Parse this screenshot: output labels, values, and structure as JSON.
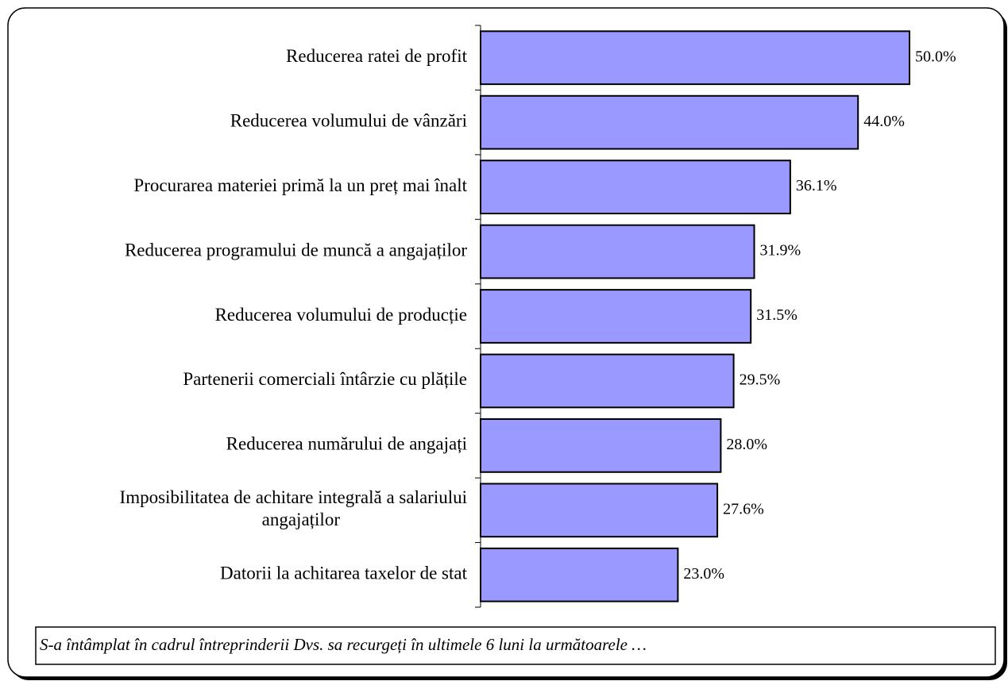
{
  "chart_data": {
    "type": "bar",
    "orientation": "horizontal",
    "categories": [
      "Reducerea ratei de profit",
      "Reducerea volumului de vânzări",
      "Procurarea materiei primă la un preț mai înalt",
      "Reducerea programului de muncă a angajaților",
      "Reducerea volumului de producție",
      "Partenerii comerciali întârzie cu plățile",
      "Reducerea numărului de angajați",
      "Imposibilitatea de achitare integrală a salariului\nangajaților",
      "Datorii la achitarea taxelor de stat"
    ],
    "values": [
      50.0,
      44.0,
      36.1,
      31.9,
      31.5,
      29.5,
      28.0,
      27.6,
      23.0
    ],
    "value_labels": [
      "50.0%",
      "44.0%",
      "36.1%",
      "31.9%",
      "31.5%",
      "29.5%",
      "28.0%",
      "27.6%",
      "23.0%"
    ],
    "color": "#9999ff",
    "xlim": [
      0,
      60
    ],
    "annotation": "S-a întâmplat în cadrul întreprinderii Dvs. sa recurgeți în ultimele 6 luni la următoarele …"
  }
}
